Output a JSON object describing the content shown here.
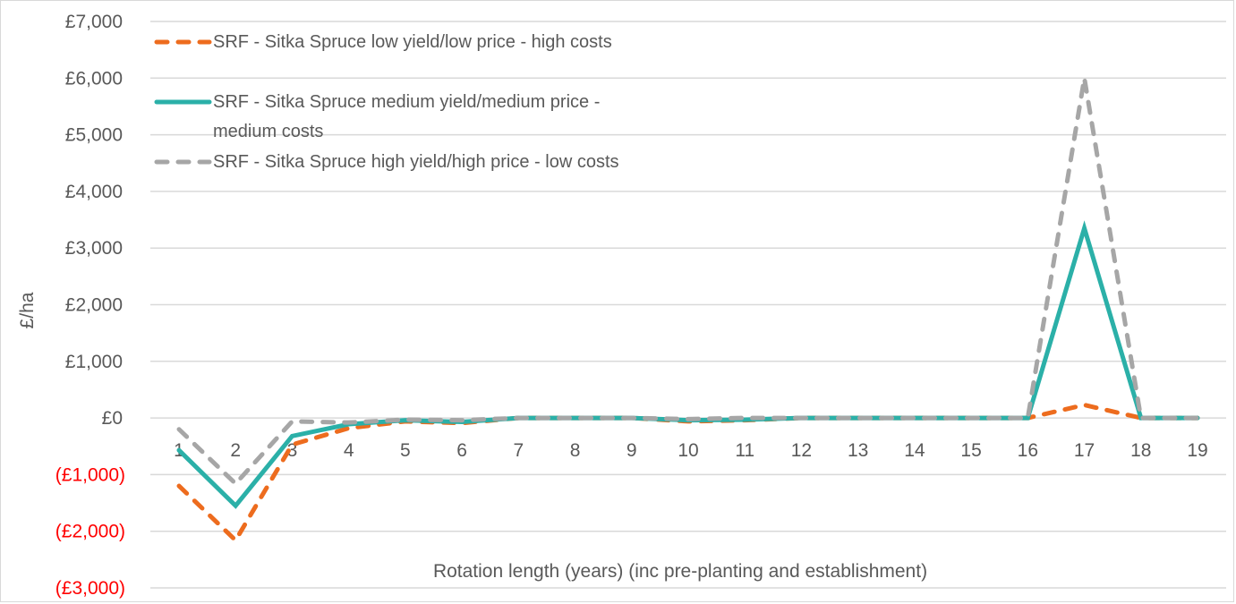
{
  "chart_data": {
    "type": "line",
    "title": "",
    "xlabel": "Rotation length (years) (inc pre-planting and establishment)",
    "ylabel": "£/ha",
    "categories": [
      "1",
      "2",
      "3",
      "4",
      "5",
      "6",
      "7",
      "8",
      "9",
      "10",
      "11",
      "12",
      "13",
      "14",
      "15",
      "16",
      "17",
      "18",
      "19"
    ],
    "ylim": [
      -3000,
      7000
    ],
    "y_ticks": [
      {
        "value": 7000,
        "label": "£7,000",
        "negative": false
      },
      {
        "value": 6000,
        "label": "£6,000",
        "negative": false
      },
      {
        "value": 5000,
        "label": "£5,000",
        "negative": false
      },
      {
        "value": 4000,
        "label": "£4,000",
        "negative": false
      },
      {
        "value": 3000,
        "label": "£3,000",
        "negative": false
      },
      {
        "value": 2000,
        "label": "£2,000",
        "negative": false
      },
      {
        "value": 1000,
        "label": "£1,000",
        "negative": false
      },
      {
        "value": 0,
        "label": "£0",
        "negative": false
      },
      {
        "value": -1000,
        "label": "(£1,000)",
        "negative": true
      },
      {
        "value": -2000,
        "label": "(£2,000)",
        "negative": true
      },
      {
        "value": -3000,
        "label": "(£3,000)",
        "negative": true
      }
    ],
    "grid": true,
    "legend_position": "top-left",
    "series": [
      {
        "name": "SRF - Sitka Spruce low yield/low price - high costs",
        "legend_lines": [
          "SRF - Sitka Spruce low yield/low price - high costs"
        ],
        "color": "#ed6c1e",
        "style": "dashed",
        "values": [
          -1200,
          -2160,
          -470,
          -180,
          -60,
          -90,
          0,
          0,
          0,
          -60,
          -40,
          0,
          0,
          0,
          0,
          0,
          230,
          0,
          0
        ]
      },
      {
        "name": "SRF - Sitka Spruce medium yield/medium price - medium costs",
        "legend_lines": [
          "SRF - Sitka Spruce medium yield/medium price -",
          "medium costs"
        ],
        "color": "#2bb0a8",
        "style": "solid",
        "values": [
          -570,
          -1550,
          -320,
          -110,
          -40,
          -70,
          0,
          0,
          0,
          -40,
          -30,
          0,
          0,
          0,
          0,
          0,
          3350,
          0,
          0
        ]
      },
      {
        "name": "SRF - Sitka Spruce high yield/high price - low costs",
        "legend_lines": [
          "SRF - Sitka Spruce high yield/high price - low costs"
        ],
        "color": "#a6a6a6",
        "style": "dashed",
        "values": [
          -200,
          -1160,
          -60,
          -80,
          -30,
          -40,
          0,
          0,
          0,
          -20,
          0,
          0,
          0,
          0,
          0,
          0,
          6000,
          0,
          0
        ]
      }
    ]
  }
}
